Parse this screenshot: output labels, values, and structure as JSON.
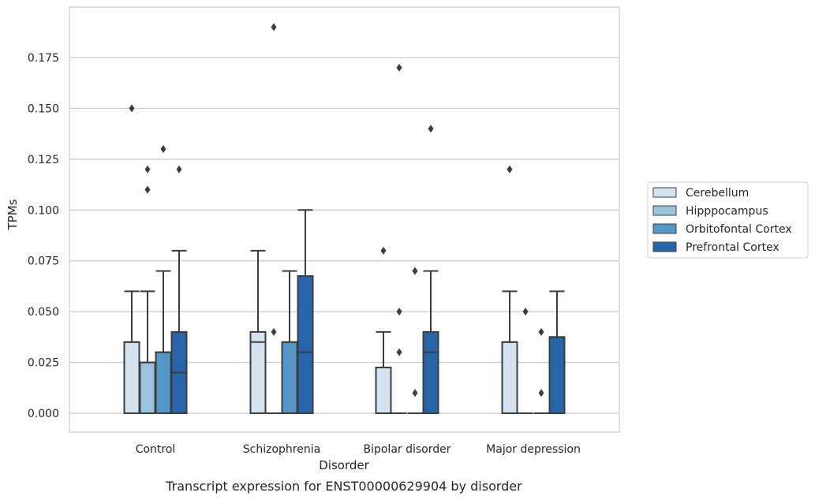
{
  "chart_data": {
    "type": "box",
    "title": "",
    "caption": "Transcript expression for ENST00000629904 by disorder",
    "xlabel": "Disorder",
    "ylabel": "TPMs",
    "ylim": [
      -0.009,
      0.199
    ],
    "yticks": [
      "0.000",
      "0.025",
      "0.050",
      "0.075",
      "0.100",
      "0.125",
      "0.150",
      "0.175"
    ],
    "categories": [
      "Control",
      "Schizophrenia",
      "Bipolar disorder",
      "Major depression"
    ],
    "grid": "horizontal",
    "legend_position": "right",
    "series": [
      {
        "name": "Cerebellum",
        "color": "#d4e3f2",
        "boxes": [
          {
            "category": "Control",
            "q1": 0.0,
            "median": 0.035,
            "q3": 0.035,
            "whisker_low": 0.0,
            "whisker_high": 0.06,
            "outliers": [
              0.15
            ]
          },
          {
            "category": "Schizophrenia",
            "q1": 0.0,
            "median": 0.035,
            "q3": 0.04,
            "whisker_low": 0.0,
            "whisker_high": 0.08,
            "outliers": []
          },
          {
            "category": "Bipolar disorder",
            "q1": 0.0,
            "median": 0.0225,
            "q3": 0.0225,
            "whisker_low": 0.0,
            "whisker_high": 0.04,
            "outliers": [
              0.08
            ]
          },
          {
            "category": "Major depression",
            "q1": 0.0,
            "median": 0.035,
            "q3": 0.035,
            "whisker_low": 0.0,
            "whisker_high": 0.06,
            "outliers": [
              0.12
            ]
          }
        ]
      },
      {
        "name": "Hipppocampus",
        "color": "#9ac4de",
        "boxes": [
          {
            "category": "Control",
            "q1": 0.0,
            "median": 0.025,
            "q3": 0.025,
            "whisker_low": 0.0,
            "whisker_high": 0.06,
            "outliers": [
              0.11,
              0.12
            ]
          },
          {
            "category": "Schizophrenia",
            "q1": 0.0,
            "median": 0.0,
            "q3": 0.0,
            "whisker_low": 0.0,
            "whisker_high": 0.0,
            "outliers": [
              0.04,
              0.19
            ]
          },
          {
            "category": "Bipolar disorder",
            "q1": 0.0,
            "median": 0.0,
            "q3": 0.0,
            "whisker_low": 0.0,
            "whisker_high": 0.0,
            "outliers": [
              0.03,
              0.05,
              0.17
            ]
          },
          {
            "category": "Major depression",
            "q1": 0.0,
            "median": 0.0,
            "q3": 0.0,
            "whisker_low": 0.0,
            "whisker_high": 0.0,
            "outliers": [
              0.05
            ]
          }
        ]
      },
      {
        "name": "Orbitofontal Cortex",
        "color": "#5297c7",
        "boxes": [
          {
            "category": "Control",
            "q1": 0.0,
            "median": 0.03,
            "q3": 0.03,
            "whisker_low": 0.0,
            "whisker_high": 0.07,
            "outliers": [
              0.13
            ]
          },
          {
            "category": "Schizophrenia",
            "q1": 0.0,
            "median": 0.035,
            "q3": 0.035,
            "whisker_low": 0.0,
            "whisker_high": 0.07,
            "outliers": []
          },
          {
            "category": "Bipolar disorder",
            "q1": 0.0,
            "median": 0.0,
            "q3": 0.0,
            "whisker_low": 0.0,
            "whisker_high": 0.0,
            "outliers": [
              0.01,
              0.07
            ]
          },
          {
            "category": "Major depression",
            "q1": 0.0,
            "median": 0.0,
            "q3": 0.0,
            "whisker_low": 0.0,
            "whisker_high": 0.0,
            "outliers": [
              0.01,
              0.04
            ]
          }
        ]
      },
      {
        "name": "Prefrontal Cortex",
        "color": "#2565a8",
        "boxes": [
          {
            "category": "Control",
            "q1": 0.0,
            "median": 0.02,
            "q3": 0.04,
            "whisker_low": 0.0,
            "whisker_high": 0.08,
            "outliers": [
              0.12
            ]
          },
          {
            "category": "Schizophrenia",
            "q1": 0.0,
            "median": 0.03,
            "q3": 0.0675,
            "whisker_low": 0.0,
            "whisker_high": 0.1,
            "outliers": []
          },
          {
            "category": "Bipolar disorder",
            "q1": 0.0,
            "median": 0.03,
            "q3": 0.04,
            "whisker_low": 0.0,
            "whisker_high": 0.07,
            "outliers": [
              0.14
            ]
          },
          {
            "category": "Major depression",
            "q1": 0.0,
            "median": 0.0375,
            "q3": 0.0375,
            "whisker_low": 0.0,
            "whisker_high": 0.06,
            "outliers": []
          }
        ]
      }
    ]
  }
}
